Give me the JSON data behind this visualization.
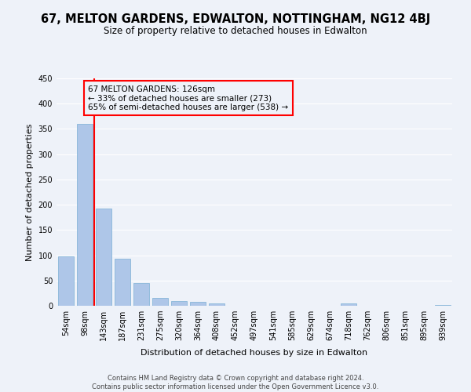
{
  "title": "67, MELTON GARDENS, EDWALTON, NOTTINGHAM, NG12 4BJ",
  "subtitle": "Size of property relative to detached houses in Edwalton",
  "xlabel": "Distribution of detached houses by size in Edwalton",
  "ylabel": "Number of detached properties",
  "bin_labels": [
    "54sqm",
    "98sqm",
    "143sqm",
    "187sqm",
    "231sqm",
    "275sqm",
    "320sqm",
    "364sqm",
    "408sqm",
    "452sqm",
    "497sqm",
    "541sqm",
    "585sqm",
    "629sqm",
    "674sqm",
    "718sqm",
    "762sqm",
    "806sqm",
    "851sqm",
    "895sqm",
    "939sqm"
  ],
  "bar_heights": [
    98,
    360,
    192,
    93,
    45,
    15,
    10,
    7,
    5,
    0,
    0,
    0,
    0,
    0,
    0,
    4,
    0,
    0,
    0,
    0,
    2
  ],
  "bar_color": "#aec6e8",
  "bar_edge_color": "#7bafd4",
  "annotation_box_text": "67 MELTON GARDENS: 126sqm\n← 33% of detached houses are smaller (273)\n65% of semi-detached houses are larger (538) →",
  "ylim": [
    0,
    450
  ],
  "yticks": [
    0,
    50,
    100,
    150,
    200,
    250,
    300,
    350,
    400,
    450
  ],
  "footer_line1": "Contains HM Land Registry data © Crown copyright and database right 2024.",
  "footer_line2": "Contains public sector information licensed under the Open Government Licence v3.0.",
  "background_color": "#eef2f9",
  "grid_color": "#ffffff",
  "title_fontsize": 10.5,
  "subtitle_fontsize": 8.5,
  "axis_label_fontsize": 8,
  "tick_fontsize": 7,
  "annotation_fontsize": 7.5,
  "footer_fontsize": 6
}
